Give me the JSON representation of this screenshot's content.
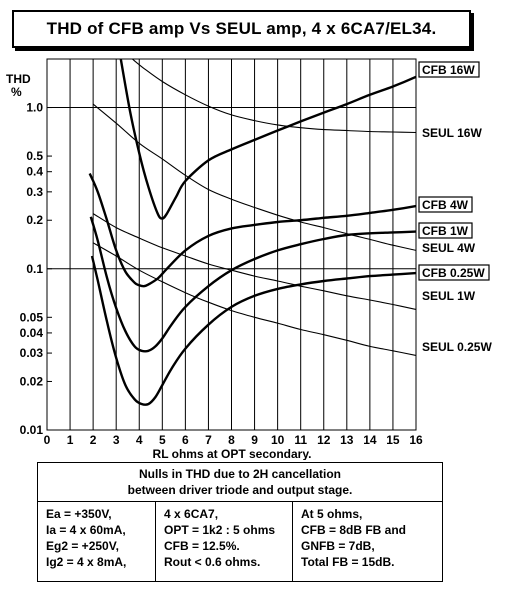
{
  "title": "THD of CFB amp Vs SEUL amp, 4 x 6CA7/EL34.",
  "chart_data": {
    "type": "line",
    "ylabel": "THD\n%",
    "xlabel": "RL ohms at OPT secondary.",
    "xlim": [
      0,
      16
    ],
    "ylim": [
      0.01,
      2.0
    ],
    "yscale": "log",
    "x_ticks": [
      0,
      1,
      2,
      3,
      4,
      5,
      6,
      7,
      8,
      9,
      10,
      11,
      12,
      13,
      14,
      15,
      16
    ],
    "y_ticks": [
      {
        "v": 1.0,
        "label": "1.0"
      },
      {
        "v": 0.5,
        "label": "0.5"
      },
      {
        "v": 0.4,
        "label": "0.4"
      },
      {
        "v": 0.3,
        "label": "0.3"
      },
      {
        "v": 0.2,
        "label": "0.2"
      },
      {
        "v": 0.1,
        "label": "0.1"
      },
      {
        "v": 0.05,
        "label": "0.05"
      },
      {
        "v": 0.04,
        "label": "0.04"
      },
      {
        "v": 0.03,
        "label": "0.03"
      },
      {
        "v": 0.02,
        "label": "0.02"
      },
      {
        "v": 0.01,
        "label": "0.01"
      }
    ],
    "grid": true,
    "series": [
      {
        "name": "CFB 16W",
        "style": "thick",
        "boxed": true,
        "x": [
          3.2,
          3.6,
          4.0,
          4.4,
          4.8,
          5.0,
          5.2,
          5.6,
          6.0,
          7.0,
          8.0,
          9.0,
          10.0,
          11.0,
          12.0,
          13.0,
          14.0,
          15.0,
          16.0
        ],
        "y": [
          2.0,
          0.95,
          0.52,
          0.32,
          0.22,
          0.205,
          0.22,
          0.28,
          0.35,
          0.47,
          0.55,
          0.63,
          0.72,
          0.82,
          0.93,
          1.05,
          1.2,
          1.35,
          1.55
        ]
      },
      {
        "name": "CFB 4W",
        "style": "thick",
        "boxed": true,
        "x": [
          1.85,
          2.2,
          2.6,
          3.0,
          3.4,
          3.8,
          4.0,
          4.2,
          4.4,
          4.8,
          5.2,
          6.0,
          7.0,
          8.0,
          9.0,
          10.0,
          11.0,
          12.0,
          13.0,
          14.0,
          15.0,
          16.0
        ],
        "y": [
          0.39,
          0.3,
          0.2,
          0.13,
          0.096,
          0.082,
          0.079,
          0.078,
          0.08,
          0.087,
          0.1,
          0.13,
          0.16,
          0.178,
          0.187,
          0.195,
          0.2,
          0.207,
          0.213,
          0.222,
          0.232,
          0.245
        ]
      },
      {
        "name": "CFB 1W",
        "style": "thick",
        "boxed": true,
        "x": [
          1.9,
          2.2,
          2.6,
          3.0,
          3.4,
          3.8,
          4.1,
          4.4,
          4.7,
          5.0,
          5.4,
          6.0,
          7.0,
          8.0,
          9.0,
          10.0,
          11.0,
          12.0,
          13.0,
          14.0,
          15.0,
          16.0
        ],
        "y": [
          0.21,
          0.15,
          0.088,
          0.057,
          0.041,
          0.033,
          0.031,
          0.031,
          0.033,
          0.037,
          0.045,
          0.058,
          0.078,
          0.098,
          0.115,
          0.13,
          0.142,
          0.153,
          0.162,
          0.166,
          0.168,
          0.17
        ]
      },
      {
        "name": "CFB 0.25W",
        "style": "thick",
        "boxed": true,
        "x": [
          1.95,
          2.2,
          2.6,
          3.0,
          3.4,
          3.8,
          4.1,
          4.4,
          4.7,
          5.0,
          5.4,
          6.0,
          7.0,
          8.0,
          9.0,
          10.0,
          11.0,
          12.0,
          13.0,
          14.0,
          15.0,
          16.0
        ],
        "y": [
          0.12,
          0.085,
          0.047,
          0.028,
          0.019,
          0.0155,
          0.0145,
          0.0145,
          0.016,
          0.019,
          0.024,
          0.032,
          0.045,
          0.058,
          0.068,
          0.075,
          0.08,
          0.084,
          0.087,
          0.09,
          0.092,
          0.094
        ]
      },
      {
        "name": "SEUL 16W",
        "style": "thin",
        "boxed": false,
        "x": [
          3.7,
          4.2,
          5.0,
          6.0,
          7.0,
          8.0,
          9.0,
          10.0,
          11.0,
          12.0,
          13.0,
          14.0,
          15.0,
          16.0
        ],
        "y": [
          2.0,
          1.75,
          1.45,
          1.2,
          1.02,
          0.9,
          0.83,
          0.78,
          0.75,
          0.73,
          0.72,
          0.71,
          0.705,
          0.7
        ]
      },
      {
        "name": "SEUL 4W",
        "style": "thin",
        "boxed": false,
        "x": [
          2.0,
          3.0,
          4.0,
          5.0,
          6.0,
          7.0,
          8.0,
          9.0,
          10.0,
          11.0,
          12.0,
          13.0,
          14.0,
          15.0,
          16.0
        ],
        "y": [
          1.05,
          0.8,
          0.6,
          0.48,
          0.38,
          0.31,
          0.27,
          0.24,
          0.215,
          0.195,
          0.18,
          0.165,
          0.152,
          0.14,
          0.13
        ]
      },
      {
        "name": "SEUL 1W",
        "style": "thin",
        "boxed": false,
        "x": [
          2.0,
          3.0,
          4.0,
          5.0,
          6.0,
          7.0,
          8.0,
          9.0,
          10.0,
          11.0,
          12.0,
          13.0,
          14.0,
          15.0,
          16.0
        ],
        "y": [
          0.22,
          0.18,
          0.155,
          0.135,
          0.12,
          0.107,
          0.098,
          0.09,
          0.084,
          0.078,
          0.073,
          0.068,
          0.064,
          0.06,
          0.056
        ]
      },
      {
        "name": "SEUL 0.25W",
        "style": "thin",
        "boxed": false,
        "x": [
          2.0,
          3.0,
          4.0,
          5.0,
          6.0,
          7.0,
          8.0,
          9.0,
          10.0,
          11.0,
          12.0,
          13.0,
          14.0,
          15.0,
          16.0
        ],
        "y": [
          0.145,
          0.12,
          0.098,
          0.083,
          0.071,
          0.062,
          0.055,
          0.05,
          0.046,
          0.042,
          0.039,
          0.036,
          0.033,
          0.031,
          0.029
        ]
      }
    ]
  },
  "notes": {
    "header_line1": "Nulls in THD due to 2H cancellation",
    "header_line2": "between driver triode and output stage.",
    "col1": [
      "Ea = +350V,",
      "Ia = 4 x 60mA,",
      "Eg2 = +250V,",
      "Ig2 = 4 x 8mA,"
    ],
    "col2": [
      "4 x 6CA7,",
      "OPT = 1k2 : 5 ohms",
      "CFB = 12.5%.",
      "Rout < 0.6 ohms."
    ],
    "col3": [
      "At 5 ohms,",
      "CFB = 8dB FB and",
      "GNFB = 7dB,",
      "Total FB  = 15dB."
    ]
  }
}
